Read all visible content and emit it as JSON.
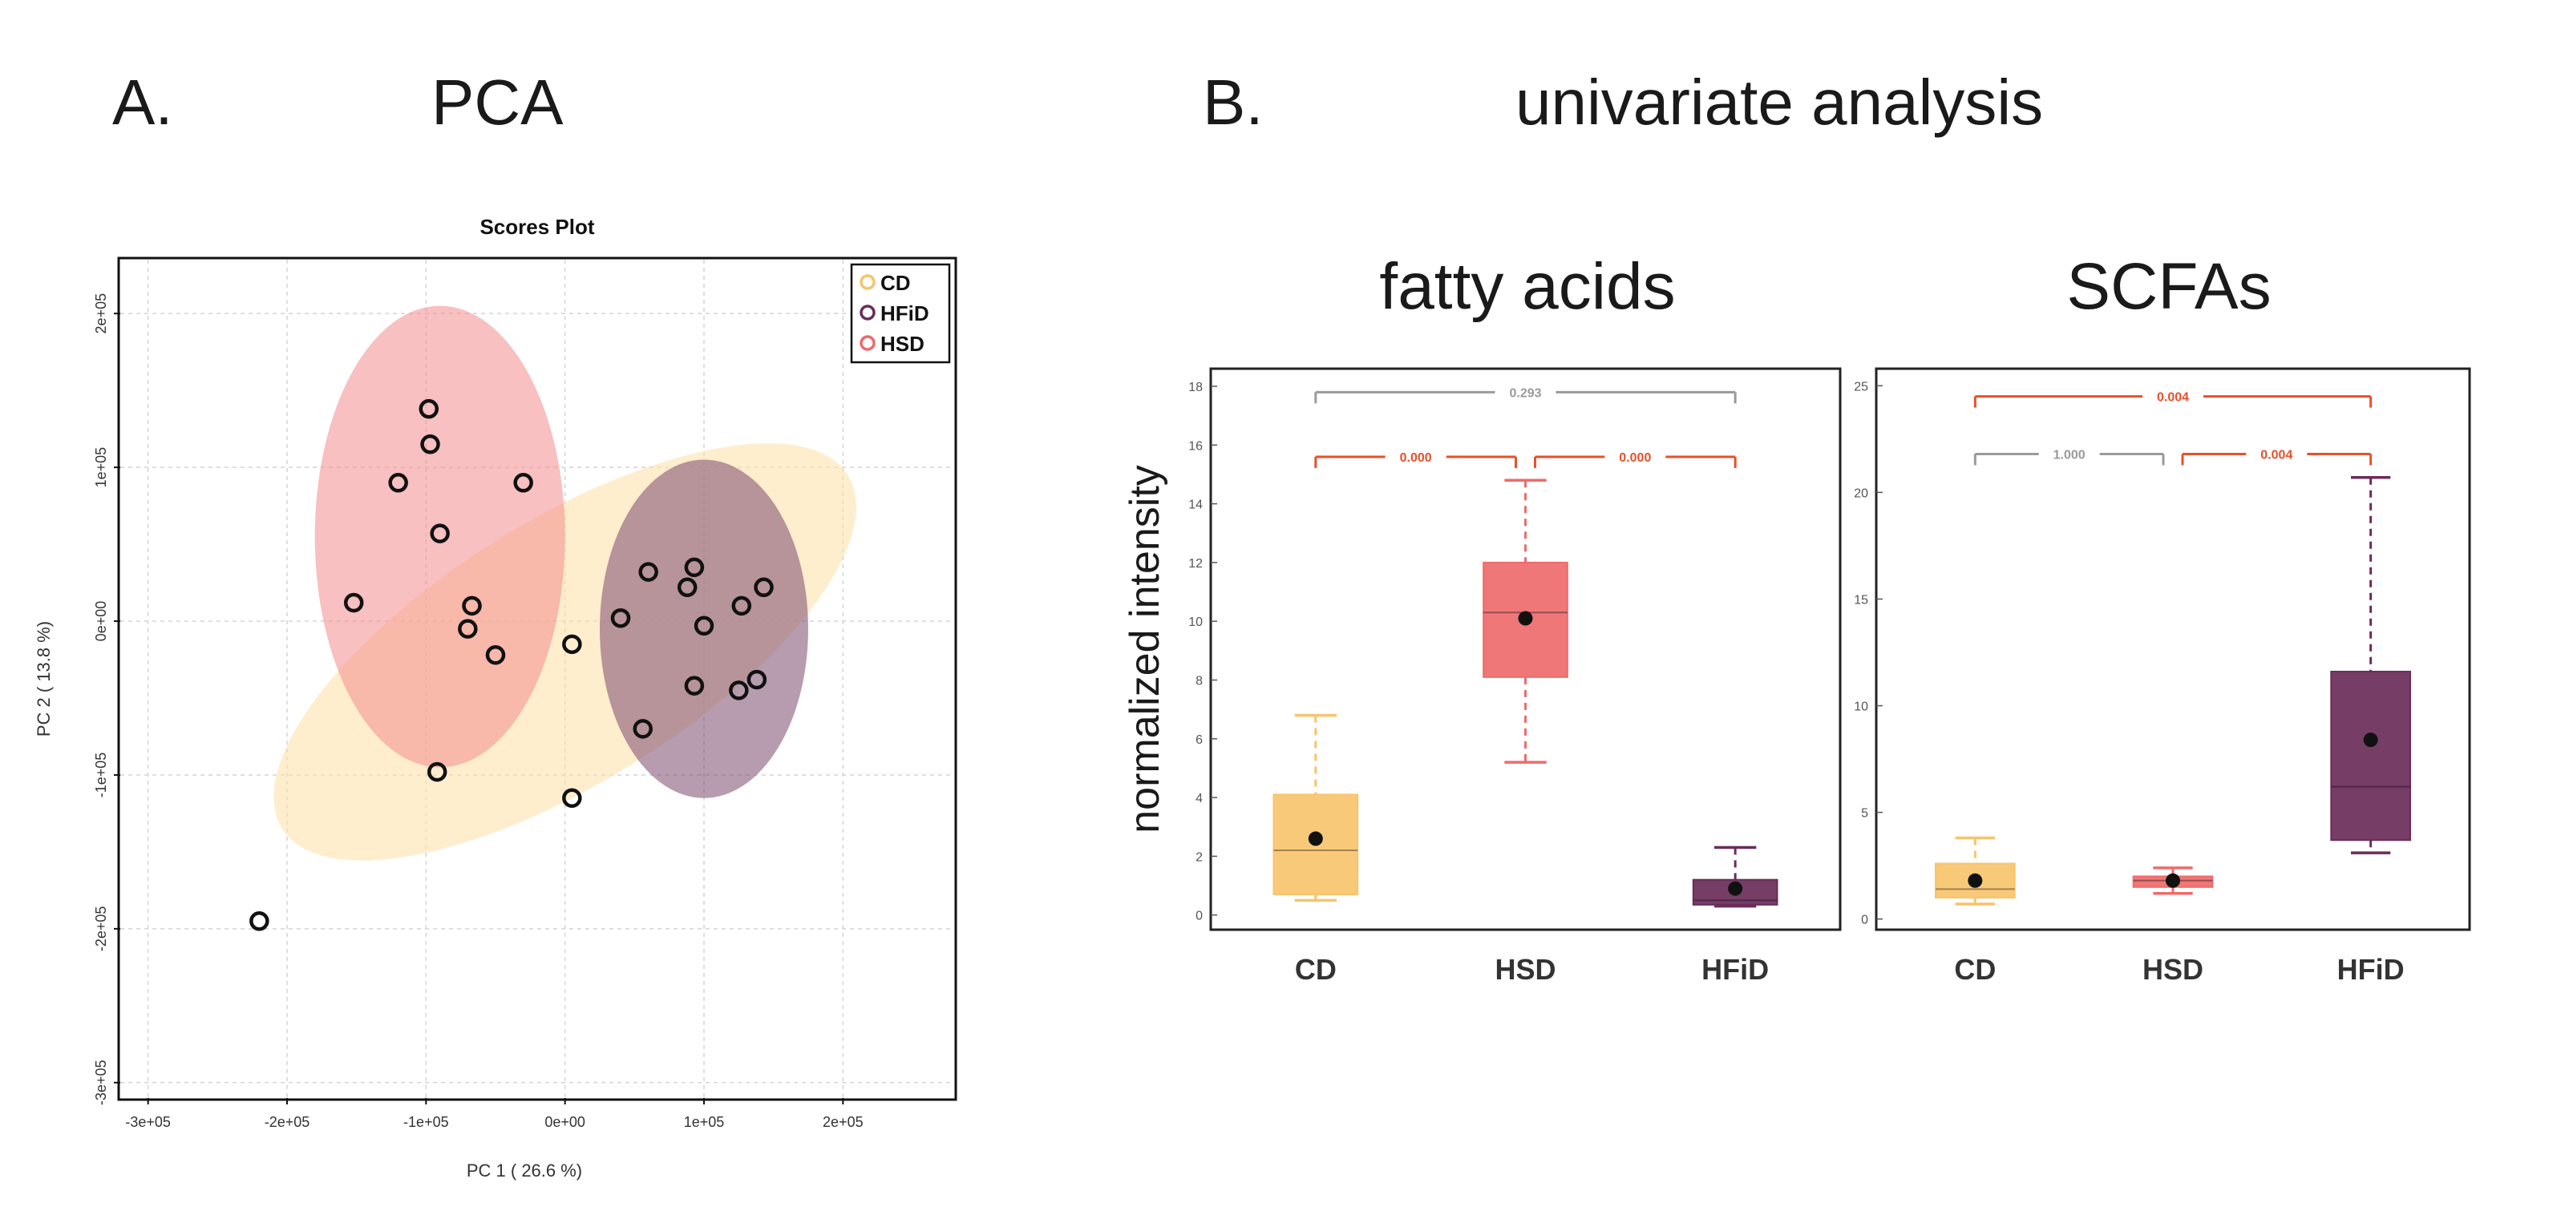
{
  "colors": {
    "CD": "#f7c46c",
    "CD_ellipse": "#fde0a6",
    "HSD": "#ee6b6b",
    "HSD_ellipse": "#f38d8d",
    "HFiD": "#6a2c5a",
    "HFiD_ellipse": "#7b4b6e",
    "sig": "#e8502a",
    "ns": "#9a9a9a",
    "grid": "#d4d4d4",
    "point_stroke": "#111111"
  },
  "panel_a": {
    "letter": "A.",
    "title": "PCA"
  },
  "panel_b": {
    "letter": "B.",
    "title": "univariate analysis",
    "ylabel": "normalized intensity"
  },
  "chart_data": [
    {
      "id": "scores",
      "type": "scatter",
      "title": "Scores Plot",
      "xlabel": "PC 1 ( 26.6 %)",
      "ylabel": "PC 2 ( 13.8 %)",
      "xlim": [
        -320000,
        280000
      ],
      "ylim": [
        -310000,
        235000
      ],
      "x_ticks": [
        -300000,
        -200000,
        -100000,
        0,
        100000,
        200000
      ],
      "x_tick_labels": [
        "-3e+05",
        "-2e+05",
        "-1e+05",
        "0e+00",
        "1e+05",
        "2e+05"
      ],
      "y_ticks": [
        -300000,
        -200000,
        -100000,
        0,
        100000,
        200000
      ],
      "y_tick_labels": [
        "-3e+05",
        "-2e+05",
        "-1e+05",
        "0e+00",
        "1e+05",
        "2e+05"
      ],
      "grid": true,
      "legend": [
        "CD",
        "HFiD",
        "HSD"
      ],
      "legend_position": "top-right",
      "ellipses": [
        {
          "group": "CD",
          "cx": 0,
          "cy": -20000,
          "rx": 240000,
          "ry": 85000,
          "angle": 32
        },
        {
          "group": "HSD",
          "cx": -90000,
          "cy": 55000,
          "rx": 90000,
          "ry": 150000,
          "angle": 0
        },
        {
          "group": "HFiD",
          "cx": 100000,
          "cy": -5000,
          "rx": 75000,
          "ry": 110000,
          "angle": 0
        }
      ],
      "series": [
        {
          "name": "HSD",
          "points": [
            [
              -98000,
              138000
            ],
            [
              -97000,
              115000
            ],
            [
              -120000,
              90000
            ],
            [
              -30000,
              90000
            ],
            [
              -90000,
              57000
            ],
            [
              -152000,
              12000
            ],
            [
              -67000,
              10000
            ],
            [
              -70000,
              -5000
            ],
            [
              -50000,
              -22000
            ],
            [
              -92000,
              -98000
            ]
          ]
        },
        {
          "name": "CD",
          "points": [
            [
              -220000,
              -195000
            ],
            [
              5000,
              -15000
            ],
            [
              40000,
              2000
            ],
            [
              60000,
              32000
            ],
            [
              88000,
              22000
            ],
            [
              5000,
              -115000
            ]
          ]
        },
        {
          "name": "HFiD",
          "points": [
            [
              93000,
              35000
            ],
            [
              127000,
              10000
            ],
            [
              143000,
              22000
            ],
            [
              100000,
              -3000
            ],
            [
              93000,
              -42000
            ],
            [
              125000,
              -45000
            ],
            [
              138000,
              -38000
            ],
            [
              56000,
              -70000
            ]
          ]
        }
      ]
    },
    {
      "id": "fatty_acids",
      "type": "box",
      "title": "fatty acids",
      "categories": [
        "CD",
        "HSD",
        "HFiD"
      ],
      "ylim": [
        -0.5,
        18.6
      ],
      "y_ticks": [
        0,
        2,
        4,
        6,
        8,
        10,
        12,
        14,
        16,
        18
      ],
      "boxes": [
        {
          "group": "CD",
          "min": 0.5,
          "q1": 0.7,
          "median": 2.2,
          "q3": 4.1,
          "max": 6.8,
          "mean": 2.6
        },
        {
          "group": "HSD",
          "min": 5.2,
          "q1": 8.1,
          "median": 10.3,
          "q3": 12.0,
          "max": 14.8,
          "mean": 10.1
        },
        {
          "group": "HFiD",
          "min": 0.3,
          "q1": 0.35,
          "median": 0.5,
          "q3": 1.2,
          "max": 2.3,
          "mean": 0.9
        }
      ],
      "comparisons": [
        {
          "from": "CD",
          "to": "HFiD",
          "label": "0.293",
          "y": 17.8,
          "significant": false
        },
        {
          "from": "CD",
          "to": "HSD",
          "label": "0.000",
          "y": 15.6,
          "significant": true
        },
        {
          "from": "HSD",
          "to": "HFiD",
          "label": "0.000",
          "y": 15.6,
          "significant": true
        }
      ]
    },
    {
      "id": "scfas",
      "type": "box",
      "title": "SCFAs",
      "categories": [
        "CD",
        "HSD",
        "HFiD"
      ],
      "ylim": [
        -0.5,
        25.8
      ],
      "y_ticks": [
        0,
        5,
        10,
        15,
        20,
        25
      ],
      "boxes": [
        {
          "group": "CD",
          "min": 0.7,
          "q1": 1.0,
          "median": 1.4,
          "q3": 2.6,
          "max": 3.8,
          "mean": 1.8
        },
        {
          "group": "HSD",
          "min": 1.2,
          "q1": 1.5,
          "median": 1.8,
          "q3": 2.0,
          "max": 2.4,
          "mean": 1.8
        },
        {
          "group": "HFiD",
          "min": 3.1,
          "q1": 3.7,
          "median": 6.2,
          "q3": 11.6,
          "max": 20.7,
          "mean": 8.4
        }
      ],
      "comparisons": [
        {
          "from": "CD",
          "to": "HFiD",
          "label": "0.004",
          "y": 24.5,
          "significant": true
        },
        {
          "from": "CD",
          "to": "HSD",
          "label": "1.000",
          "y": 21.8,
          "significant": false
        },
        {
          "from": "HSD",
          "to": "HFiD",
          "label": "0.004",
          "y": 21.8,
          "significant": true
        }
      ]
    }
  ]
}
